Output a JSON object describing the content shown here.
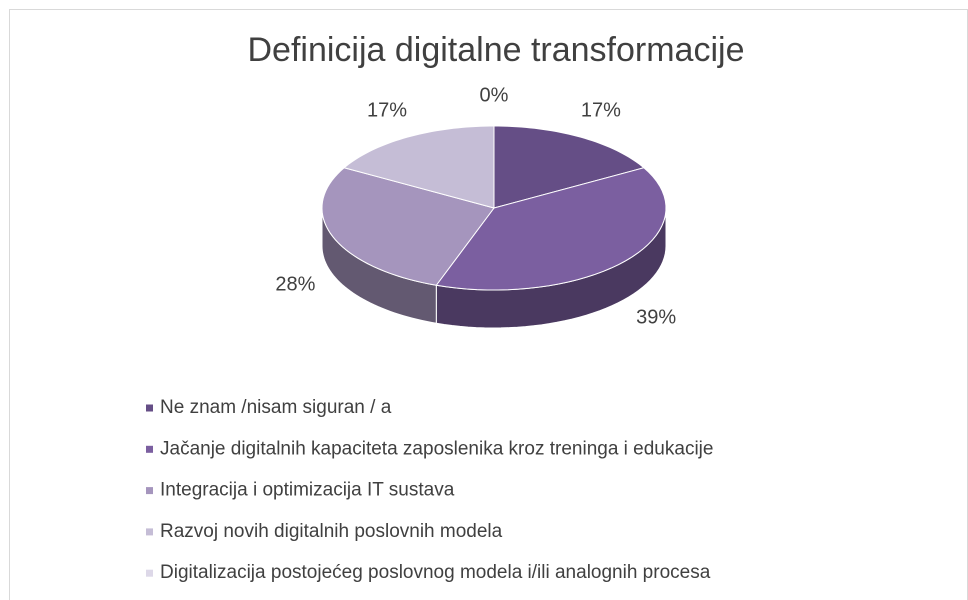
{
  "chart_data": {
    "type": "pie3d",
    "title": "Definicija digitalne transformacije",
    "categories": [
      "Ne znam /nisam siguran / a",
      "Jačanje digitalnih kapaciteta zaposlenika kroz treninga i edukacije",
      "Integracija i optimizacija IT sustava",
      "Razvoj novih digitalnih poslovnih modela",
      "Digitalizacija postojećeg poslovnog modela i/ili analognih procesa"
    ],
    "values": [
      17,
      39,
      28,
      17,
      0
    ],
    "value_labels": [
      "17%",
      "39%",
      "28%",
      "17%",
      "0%"
    ],
    "colors": [
      "#654e86",
      "#7b5fa0",
      "#a595bd",
      "#c5bdd6",
      "#ddd8e8"
    ],
    "legend": "bottom"
  }
}
